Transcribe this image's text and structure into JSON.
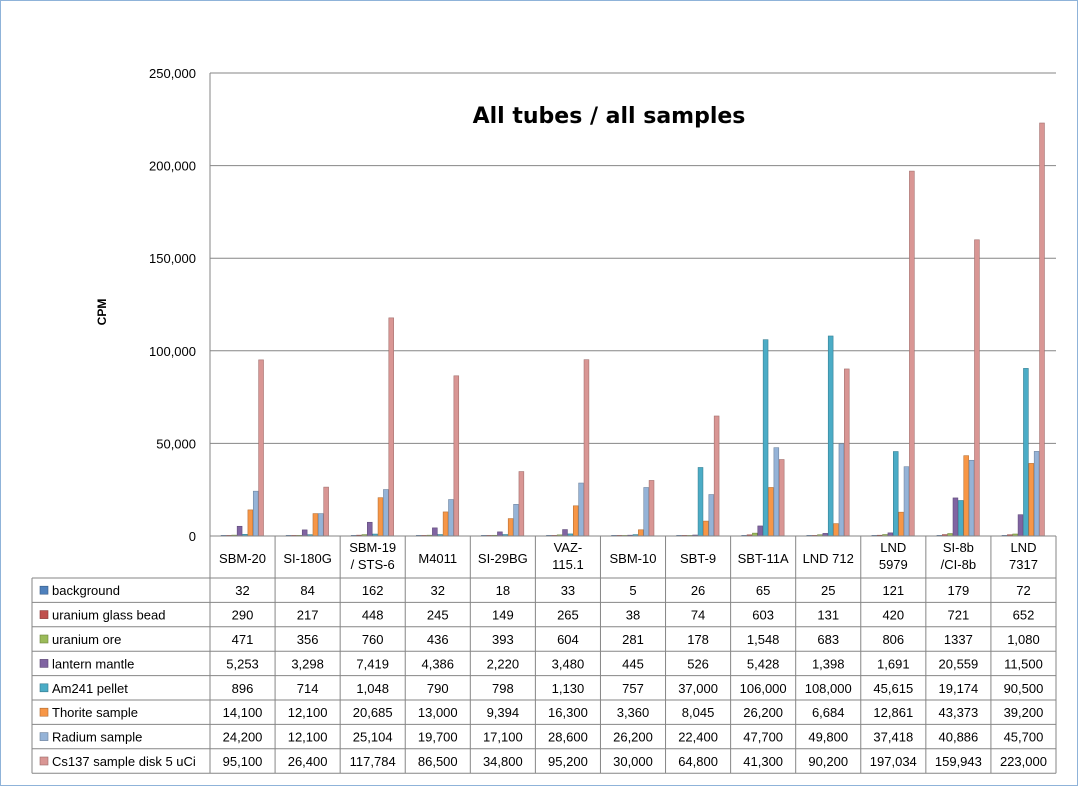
{
  "chart_data": {
    "type": "bar",
    "title": "All tubes / all samples",
    "ylabel": "CPM",
    "ylim": [
      0,
      250000
    ],
    "y_ticks": [
      "0",
      "50,000",
      "100,000",
      "150,000",
      "200,000",
      "250,000"
    ],
    "y_tick_values": [
      0,
      50000,
      100000,
      150000,
      200000,
      250000
    ],
    "grid": true,
    "categories": [
      [
        "SBM-20"
      ],
      [
        "SI-180G"
      ],
      [
        "SBM-19",
        "/ STS-6"
      ],
      [
        "M4011"
      ],
      [
        "SI-29BG"
      ],
      [
        "VAZ-",
        "115.1"
      ],
      [
        "SBM-10"
      ],
      [
        "SBT-9"
      ],
      [
        "SBT-11A"
      ],
      [
        "LND 712"
      ],
      [
        "LND",
        "5979"
      ],
      [
        "SI-8b",
        "/CI-8b"
      ],
      [
        "LND",
        "7317"
      ]
    ],
    "series": [
      {
        "name": "background",
        "color": "#4f81bd",
        "values": [
          32,
          84,
          162,
          32,
          18,
          33,
          5,
          26,
          65,
          25,
          121,
          179,
          72
        ],
        "labels": [
          "32",
          "84",
          "162",
          "32",
          "18",
          "33",
          "5",
          "26",
          "65",
          "25",
          "121",
          "179",
          "72"
        ]
      },
      {
        "name": "uranium glass bead",
        "color": "#c0504d",
        "values": [
          290,
          217,
          448,
          245,
          149,
          265,
          38,
          74,
          603,
          131,
          420,
          721,
          652
        ],
        "labels": [
          "290",
          "217",
          "448",
          "245",
          "149",
          "265",
          "38",
          "74",
          "603",
          "131",
          "420",
          "721",
          "652"
        ]
      },
      {
        "name": "uranium ore",
        "color": "#9bbb59",
        "values": [
          471,
          356,
          760,
          436,
          393,
          604,
          281,
          178,
          1548,
          683,
          806,
          1337,
          1080
        ],
        "labels": [
          "471",
          "356",
          "760",
          "436",
          "393",
          "604",
          "281",
          "178",
          "1,548",
          "683",
          "806",
          "1337",
          "1,080"
        ]
      },
      {
        "name": "lantern mantle",
        "color": "#8064a2",
        "values": [
          5253,
          3298,
          7419,
          4386,
          2220,
          3480,
          445,
          526,
          5428,
          1398,
          1691,
          20559,
          11500
        ],
        "labels": [
          "5,253",
          "3,298",
          "7,419",
          "4,386",
          "2,220",
          "3,480",
          "445",
          "526",
          "5,428",
          "1,398",
          "1,691",
          "20,559",
          "11,500"
        ]
      },
      {
        "name": "Am241 pellet",
        "color": "#4bacc6",
        "values": [
          896,
          714,
          1048,
          790,
          798,
          1130,
          757,
          37000,
          106000,
          108000,
          45615,
          19174,
          90500
        ],
        "labels": [
          "896",
          "714",
          "1,048",
          "790",
          "798",
          "1,130",
          "757",
          "37,000",
          "106,000",
          "108,000",
          "45,615",
          "19,174",
          "90,500"
        ]
      },
      {
        "name": "Thorite sample",
        "color": "#f79646",
        "values": [
          14100,
          12100,
          20685,
          13000,
          9394,
          16300,
          3360,
          8045,
          26200,
          6684,
          12861,
          43373,
          39200
        ],
        "labels": [
          "14,100",
          "12,100",
          "20,685",
          "13,000",
          "9,394",
          "16,300",
          "3,360",
          "8,045",
          "26,200",
          "6,684",
          "12,861",
          "43,373",
          "39,200"
        ]
      },
      {
        "name": "Radium sample",
        "color": "#95b3d7",
        "values": [
          24200,
          12100,
          25104,
          19700,
          17100,
          28600,
          26200,
          22400,
          47700,
          49800,
          37418,
          40886,
          45700
        ],
        "labels": [
          "24,200",
          "12,100",
          "25,104",
          "19,700",
          "17,100",
          "28,600",
          "26,200",
          "22,400",
          "47,700",
          "49,800",
          "37,418",
          "40,886",
          "45,700"
        ]
      },
      {
        "name": "Cs137 sample disk  5 uCi",
        "color": "#d99694",
        "values": [
          95100,
          26400,
          117784,
          86500,
          34800,
          95200,
          30000,
          64800,
          41300,
          90200,
          197034,
          159943,
          223000
        ],
        "labels": [
          "95,100",
          "26,400",
          "117,784",
          "86,500",
          "34,800",
          "95,200",
          "30,000",
          "64,800",
          "41,300",
          "90,200",
          "197,034",
          "159,943",
          "223,000"
        ]
      }
    ],
    "legend_placement": "data table left"
  }
}
